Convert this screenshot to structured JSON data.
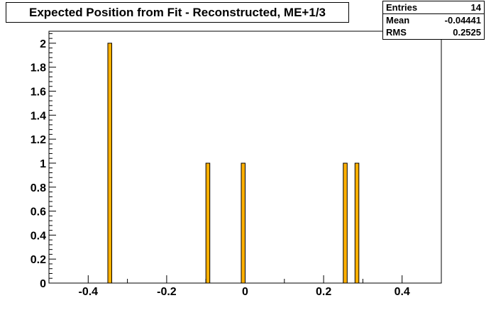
{
  "title": "Expected Position from Fit - Reconstructed, ME+1/3",
  "stats": [
    {
      "label": "Entries",
      "value": "14"
    },
    {
      "label": "Mean",
      "value": "-0.04441"
    },
    {
      "label": "RMS",
      "value": "0.2525"
    }
  ],
  "colors": {
    "bar_fill": "#ffb000",
    "bar_edge": "#000000",
    "axis": "#000000"
  },
  "chart_data": {
    "type": "bar",
    "title": "Expected Position from Fit - Reconstructed, ME+1/3",
    "xlabel": "",
    "ylabel": "",
    "xlim": [
      -0.5,
      0.5
    ],
    "ylim": [
      0,
      2.1
    ],
    "grid": false,
    "bin_width": 0.01,
    "x": [
      -0.345,
      -0.095,
      -0.005,
      0.255,
      0.285
    ],
    "values": [
      2,
      1,
      1,
      1,
      1
    ],
    "x_ticks": [
      -0.4,
      -0.2,
      0,
      0.2,
      0.4
    ],
    "x_tick_labels": [
      "-0.4",
      "-0.2",
      "0",
      "0.2",
      "0.4"
    ],
    "y_ticks": [
      0,
      0.2,
      0.4,
      0.6,
      0.8,
      1,
      1.2,
      1.4,
      1.6,
      1.8,
      2
    ],
    "y_tick_labels": [
      "0",
      "0.2",
      "0.4",
      "0.6",
      "0.8",
      "1",
      "1.2",
      "1.4",
      "1.6",
      "1.8",
      "2"
    ]
  }
}
